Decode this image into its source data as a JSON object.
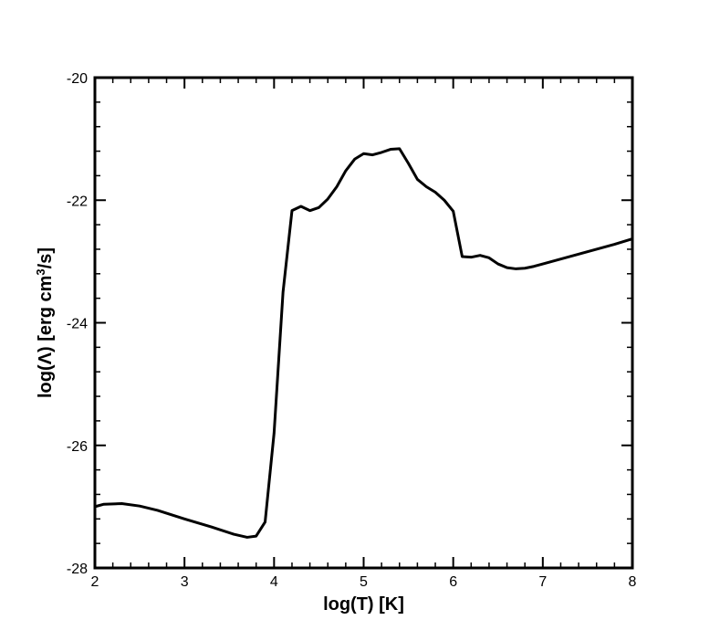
{
  "chart_data": {
    "type": "line",
    "title": "",
    "xlabel": "log(T) [K]",
    "ylabel": {
      "prefix": "log(Λ) [erg cm",
      "superscript": "3",
      "suffix": "/s]"
    },
    "xlim": [
      2,
      8
    ],
    "ylim": [
      -28,
      -20
    ],
    "xticks": [
      {
        "value": 2,
        "label": "2"
      },
      {
        "value": 3,
        "label": "3"
      },
      {
        "value": 4,
        "label": "4"
      },
      {
        "value": 5,
        "label": "5"
      },
      {
        "value": 6,
        "label": "6"
      },
      {
        "value": 7,
        "label": "7"
      },
      {
        "value": 8,
        "label": "8"
      }
    ],
    "yticks": [
      {
        "value": -20,
        "label": "-20"
      },
      {
        "value": -22,
        "label": "-22"
      },
      {
        "value": -24,
        "label": "-24"
      },
      {
        "value": -26,
        "label": "-26"
      },
      {
        "value": -28,
        "label": "-28"
      }
    ],
    "x_minor_step": 0.2,
    "y_minor_step": 0.4,
    "grid": false,
    "legend": "none",
    "line_color": "#000000",
    "series": [
      {
        "x": [
          2.0,
          2.1,
          2.3,
          2.5,
          2.7,
          3.0,
          3.3,
          3.55,
          3.7,
          3.8,
          3.9,
          4.0,
          4.1,
          4.2,
          4.3,
          4.4,
          4.5,
          4.6,
          4.7,
          4.8,
          4.9,
          5.0,
          5.1,
          5.2,
          5.3,
          5.4,
          5.5,
          5.6,
          5.7,
          5.8,
          5.9,
          6.0,
          6.1,
          6.2,
          6.3,
          6.4,
          6.5,
          6.6,
          6.7,
          6.8,
          6.9,
          7.0,
          7.2,
          7.4,
          7.6,
          7.8,
          8.0
        ],
        "y": [
          -27.0,
          -26.96,
          -26.95,
          -26.99,
          -27.06,
          -27.2,
          -27.33,
          -27.45,
          -27.5,
          -27.48,
          -27.25,
          -25.8,
          -23.5,
          -22.17,
          -22.1,
          -22.17,
          -22.12,
          -21.98,
          -21.78,
          -21.52,
          -21.33,
          -21.24,
          -21.26,
          -21.22,
          -21.17,
          -21.16,
          -21.4,
          -21.66,
          -21.78,
          -21.87,
          -22.0,
          -22.18,
          -22.92,
          -22.93,
          -22.9,
          -22.94,
          -23.04,
          -23.1,
          -23.12,
          -23.11,
          -23.08,
          -23.04,
          -22.96,
          -22.88,
          -22.8,
          -22.72,
          -22.63
        ]
      }
    ]
  }
}
